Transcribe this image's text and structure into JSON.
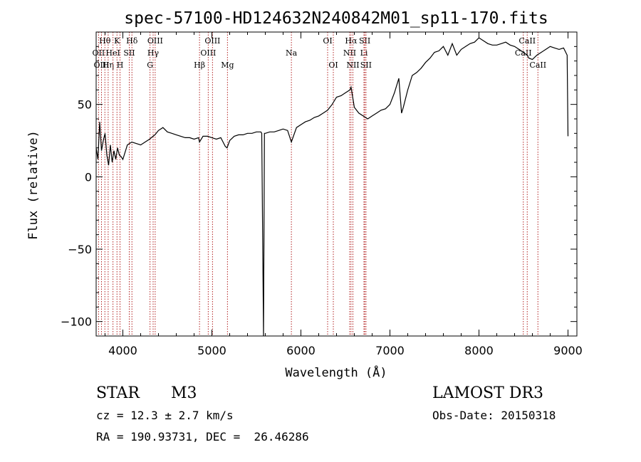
{
  "chart_data": {
    "type": "line",
    "title": "spec-57100-HD124632N240842M01_sp11-170.fits",
    "xlabel": "Wavelength (Å)",
    "ylabel": "Flux (relative)",
    "xlim": [
      3700,
      9100
    ],
    "ylim": [
      -110,
      100
    ],
    "xticks": [
      4000,
      5000,
      6000,
      7000,
      8000,
      9000
    ],
    "yticks": [
      -100,
      -50,
      0,
      50
    ],
    "series": [
      {
        "name": "flux",
        "x": [
          3700,
          3720,
          3740,
          3760,
          3780,
          3800,
          3820,
          3840,
          3860,
          3880,
          3900,
          3920,
          3940,
          3960,
          3980,
          4000,
          4050,
          4100,
          4150,
          4200,
          4250,
          4300,
          4320,
          4340,
          4360,
          4400,
          4450,
          4500,
          4550,
          4600,
          4650,
          4700,
          4750,
          4800,
          4850,
          4861,
          4900,
          4950,
          5000,
          5050,
          5100,
          5150,
          5170,
          5200,
          5250,
          5300,
          5350,
          5400,
          5450,
          5500,
          5550,
          5560,
          5580,
          5590,
          5600,
          5650,
          5700,
          5750,
          5800,
          5850,
          5893,
          5950,
          6000,
          6050,
          6100,
          6150,
          6200,
          6250,
          6300,
          6350,
          6400,
          6450,
          6500,
          6550,
          6563,
          6600,
          6650,
          6700,
          6750,
          6800,
          6850,
          6900,
          6950,
          7000,
          7050,
          7100,
          7130,
          7150,
          7200,
          7250,
          7300,
          7350,
          7400,
          7450,
          7500,
          7550,
          7600,
          7650,
          7700,
          7750,
          7800,
          7850,
          7900,
          7950,
          8000,
          8050,
          8100,
          8150,
          8200,
          8250,
          8300,
          8350,
          8400,
          8450,
          8500,
          8520,
          8542,
          8560,
          8600,
          8650,
          8700,
          8750,
          8800,
          8850,
          8900,
          8950,
          8990,
          9000
        ],
        "values": [
          20,
          12,
          38,
          18,
          25,
          30,
          15,
          8,
          22,
          10,
          18,
          12,
          20,
          15,
          14,
          12,
          22,
          24,
          23,
          22,
          24,
          26,
          27,
          28,
          29,
          32,
          34,
          31,
          30,
          29,
          28,
          27,
          27,
          26,
          27,
          24,
          28,
          28,
          27,
          26,
          27,
          21,
          20,
          25,
          28,
          29,
          29,
          30,
          30,
          31,
          31,
          30,
          -110,
          30,
          30,
          31,
          31,
          32,
          33,
          32,
          24,
          34,
          36,
          38,
          39,
          41,
          42,
          44,
          46,
          50,
          55,
          56,
          58,
          60,
          62,
          48,
          44,
          42,
          40,
          42,
          44,
          46,
          47,
          50,
          58,
          68,
          44,
          48,
          60,
          70,
          72,
          75,
          79,
          82,
          86,
          87,
          90,
          84,
          92,
          84,
          88,
          90,
          92,
          93,
          96,
          94,
          92,
          91,
          91,
          92,
          93,
          91,
          90,
          88,
          86,
          85,
          84,
          82,
          81,
          84,
          86,
          88,
          90,
          89,
          88,
          89,
          84,
          28
        ]
      }
    ],
    "line_markers": [
      {
        "label": "Hθ",
        "x": 3798,
        "row": 0
      },
      {
        "label": "OII",
        "x": 3727,
        "row": 1
      },
      {
        "label": "OIII",
        "x": 3760,
        "row": 2
      },
      {
        "label": "Hη",
        "x": 3835,
        "row": 2
      },
      {
        "label": "HeI",
        "x": 3889,
        "row": 1
      },
      {
        "label": "K",
        "x": 3934,
        "row": 0
      },
      {
        "label": "H",
        "x": 3968,
        "row": 2
      },
      {
        "label": "SII",
        "x": 4072,
        "row": 1
      },
      {
        "label": "Hδ",
        "x": 4102,
        "row": 0
      },
      {
        "label": "G",
        "x": 4305,
        "row": 2
      },
      {
        "label": "Hγ",
        "x": 4340,
        "row": 1
      },
      {
        "label": "OIII",
        "x": 4363,
        "row": 0
      },
      {
        "label": "Hβ",
        "x": 4861,
        "row": 2
      },
      {
        "label": "OIII",
        "x": 4959,
        "row": 1
      },
      {
        "label": "OIII",
        "x": 5007,
        "row": 0
      },
      {
        "label": "Mg",
        "x": 5175,
        "row": 2
      },
      {
        "label": "Na",
        "x": 5893,
        "row": 1
      },
      {
        "label": "OI",
        "x": 6300,
        "row": 0
      },
      {
        "label": "OI",
        "x": 6364,
        "row": 2
      },
      {
        "label": "NII",
        "x": 6548,
        "row": 1
      },
      {
        "label": "Hα",
        "x": 6563,
        "row": 0
      },
      {
        "label": "NII",
        "x": 6584,
        "row": 2
      },
      {
        "label": "Li",
        "x": 6708,
        "row": 1
      },
      {
        "label": "SII",
        "x": 6717,
        "row": 0
      },
      {
        "label": "SII",
        "x": 6731,
        "row": 2
      },
      {
        "label": "CaII",
        "x": 8498,
        "row": 1
      },
      {
        "label": "CaII",
        "x": 8542,
        "row": 0
      },
      {
        "label": "CaII",
        "x": 8662,
        "row": 2
      }
    ]
  },
  "info": {
    "class": "STAR",
    "subclass": "M3",
    "survey": "LAMOST DR3",
    "cz": "cz = 12.3 ± 2.7 km/s",
    "obs_date": "Obs-Date: 20150318",
    "coords": "RA = 190.93731, DEC =  26.46286"
  }
}
